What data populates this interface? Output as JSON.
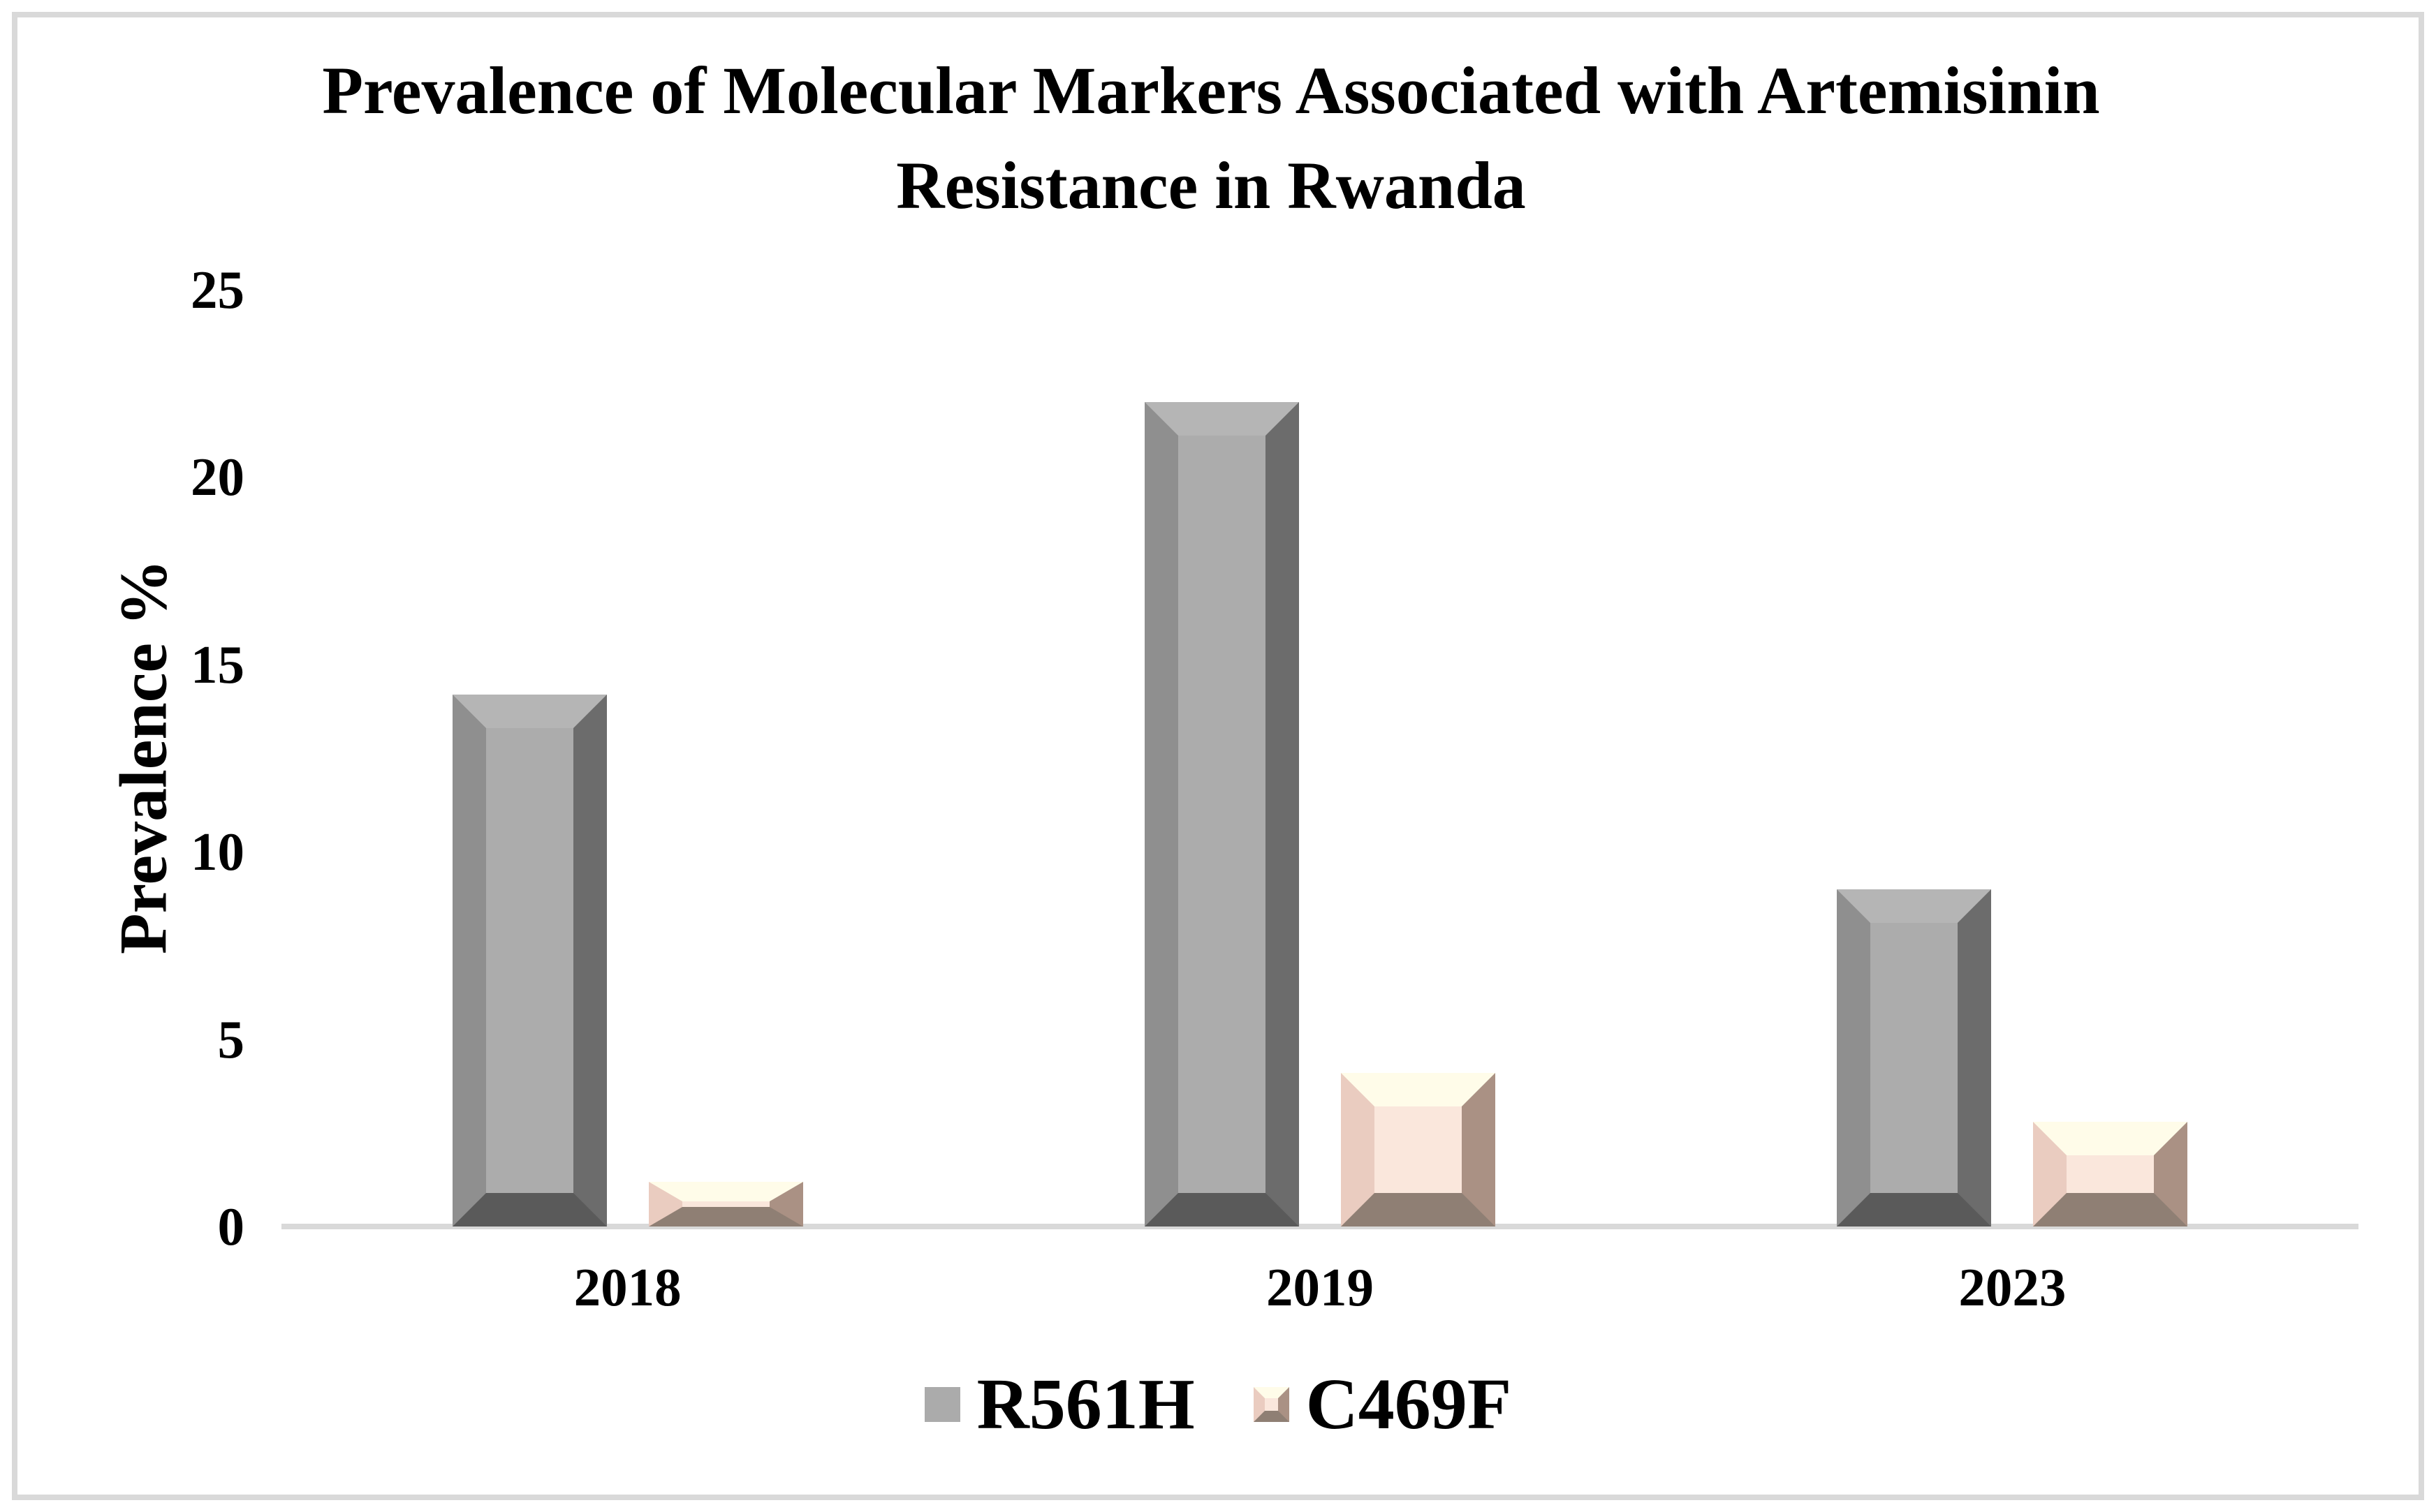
{
  "title": "Prevalence of Molecular Markers Associated with Artemisinin Resistance in Rwanda",
  "y_axis": {
    "label": "Prevalence %",
    "ticks": [
      "25",
      "20",
      "15",
      "10",
      "5",
      "0"
    ]
  },
  "x_axis": {
    "categories": [
      "2018",
      "2019",
      "2023"
    ]
  },
  "legend": {
    "items": [
      {
        "label": "R561H"
      },
      {
        "label": "C469F"
      }
    ]
  },
  "colors": {
    "frame": "#D9D9D9",
    "axis_line": "#D9D9D9",
    "text": "#000000",
    "background": "#FFFFFF"
  },
  "series_colors": {
    "R561H": {
      "face": "#ACACAC",
      "top": "#B5B5B5",
      "left": "#8F8F8F",
      "right": "#6C6C6C",
      "bottom": "#5A5A5A",
      "legend_swatch": "#ABABAB"
    },
    "C469F": {
      "face": "#FAE7DC",
      "top": "#FFFCE9",
      "left": "#EACCC0",
      "right": "#AA9184",
      "bottom": "#8F7F74"
    }
  },
  "chart_data": {
    "type": "bar",
    "title": "Prevalence of Molecular Markers Associated with Artemisinin Resistance in Rwanda",
    "categories": [
      "2018",
      "2019",
      "2023"
    ],
    "series": [
      {
        "name": "R561H",
        "values": [
          14.2,
          22,
          9
        ],
        "color": "#ACACAC"
      },
      {
        "name": "C469F",
        "values": [
          1.2,
          4.1,
          2.8
        ],
        "color": "#FAE7DC"
      }
    ],
    "xlabel": "",
    "ylabel": "Prevalence %",
    "ylim": [
      0,
      25
    ],
    "ytick_step": 5,
    "grid": false,
    "gridlines": "none",
    "legend_position": "bottom",
    "bar_style": "3d-bevel"
  }
}
